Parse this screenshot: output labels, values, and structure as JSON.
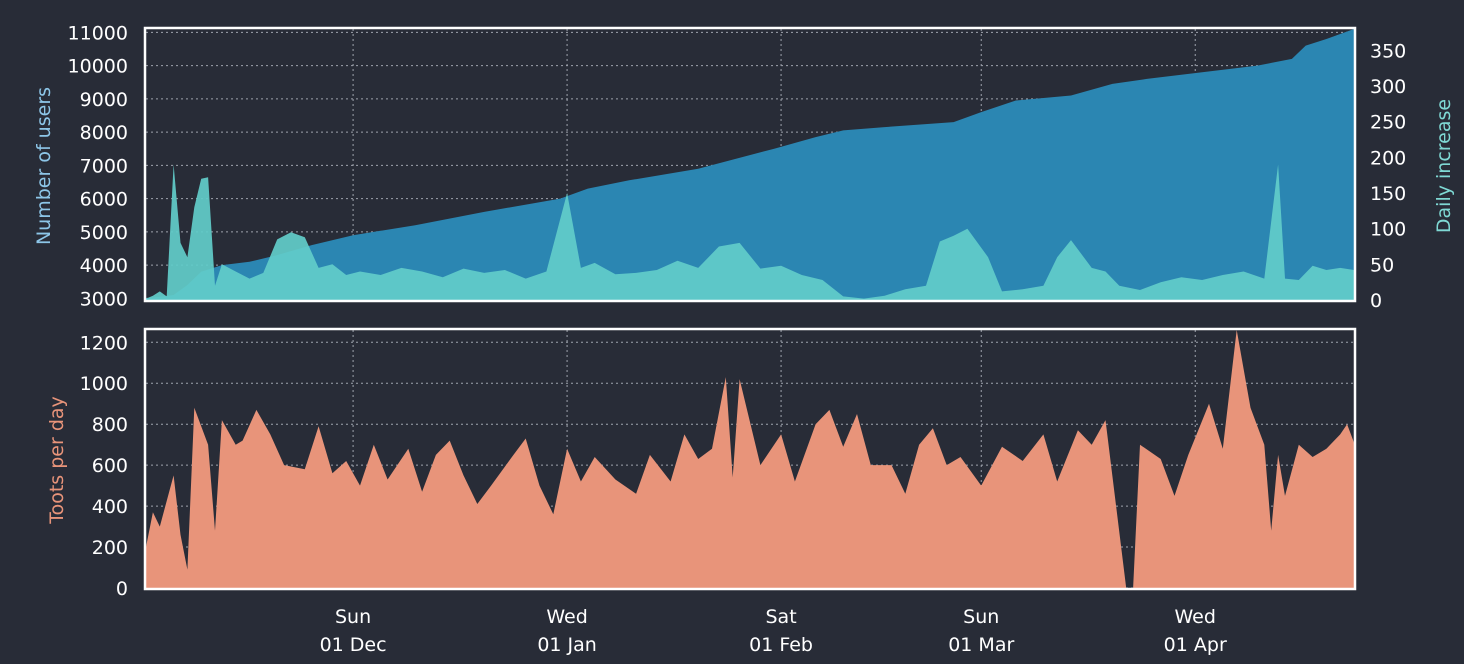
{
  "colors": {
    "background": "#282c37",
    "frame": "#ffffff",
    "grid": "#9ea3ad",
    "users_fill": "#2b86b2",
    "users_label": "#8dc6e8",
    "increase_fill": "#62cdca",
    "increase_label": "#7fd9d4",
    "toots_fill": "#e8947a",
    "toots_label": "#e8947a",
    "tick_text": "#ffffff"
  },
  "chart_data": [
    {
      "type": "area",
      "ylabel": "Number of users",
      "y2label": "Daily increase",
      "ylim": [
        2950,
        11100
      ],
      "y2lim": [
        0,
        380
      ],
      "yticks": [
        "3000",
        "4000",
        "5000",
        "6000",
        "7000",
        "8000",
        "9000",
        "10000",
        "11000"
      ],
      "y2ticks": [
        "0",
        "50",
        "100",
        "150",
        "200",
        "250",
        "300",
        "350"
      ],
      "x_start": "2019-11-01",
      "x_end": "2020-04-24",
      "grid": true,
      "series": [
        {
          "name": "Number of users",
          "axis": "left",
          "points": [
            [
              "2019-11-01",
              3000
            ],
            [
              "2019-11-03",
              3050
            ],
            [
              "2019-11-05",
              3100
            ],
            [
              "2019-11-07",
              3400
            ],
            [
              "2019-11-09",
              3800
            ],
            [
              "2019-11-12",
              4000
            ],
            [
              "2019-11-16",
              4100
            ],
            [
              "2019-11-20",
              4300
            ],
            [
              "2019-11-25",
              4600
            ],
            [
              "2019-12-01",
              4900
            ],
            [
              "2019-12-10",
              5200
            ],
            [
              "2019-12-20",
              5600
            ],
            [
              "2019-12-31",
              6000
            ],
            [
              "2020-01-04",
              6300
            ],
            [
              "2020-01-10",
              6550
            ],
            [
              "2020-01-20",
              6900
            ],
            [
              "2020-01-31",
              7500
            ],
            [
              "2020-02-06",
              7850
            ],
            [
              "2020-02-10",
              8050
            ],
            [
              "2020-02-16",
              8150
            ],
            [
              "2020-02-26",
              8300
            ],
            [
              "2020-03-01",
              8600
            ],
            [
              "2020-03-06",
              8950
            ],
            [
              "2020-03-14",
              9100
            ],
            [
              "2020-03-20",
              9450
            ],
            [
              "2020-03-25",
              9600
            ],
            [
              "2020-04-02",
              9800
            ],
            [
              "2020-04-10",
              10000
            ],
            [
              "2020-04-15",
              10200
            ],
            [
              "2020-04-17",
              10600
            ],
            [
              "2020-04-20",
              10800
            ],
            [
              "2020-04-24",
              11100
            ]
          ]
        },
        {
          "name": "Daily increase",
          "axis": "right",
          "points": [
            [
              "2019-11-01",
              2
            ],
            [
              "2019-11-02",
              6
            ],
            [
              "2019-11-03",
              12
            ],
            [
              "2019-11-04",
              5
            ],
            [
              "2019-11-05",
              190
            ],
            [
              "2019-11-06",
              80
            ],
            [
              "2019-11-07",
              60
            ],
            [
              "2019-11-08",
              130
            ],
            [
              "2019-11-09",
              170
            ],
            [
              "2019-11-10",
              172
            ],
            [
              "2019-11-11",
              20
            ],
            [
              "2019-11-12",
              50
            ],
            [
              "2019-11-14",
              40
            ],
            [
              "2019-11-16",
              30
            ],
            [
              "2019-11-18",
              38
            ],
            [
              "2019-11-20",
              85
            ],
            [
              "2019-11-22",
              95
            ],
            [
              "2019-11-24",
              88
            ],
            [
              "2019-11-26",
              45
            ],
            [
              "2019-11-28",
              50
            ],
            [
              "2019-11-30",
              35
            ],
            [
              "2019-12-02",
              40
            ],
            [
              "2019-12-05",
              35
            ],
            [
              "2019-12-08",
              45
            ],
            [
              "2019-12-11",
              40
            ],
            [
              "2019-12-14",
              32
            ],
            [
              "2019-12-17",
              44
            ],
            [
              "2019-12-20",
              38
            ],
            [
              "2019-12-23",
              42
            ],
            [
              "2019-12-26",
              30
            ],
            [
              "2019-12-29",
              40
            ],
            [
              "2020-01-01",
              150
            ],
            [
              "2020-01-03",
              45
            ],
            [
              "2020-01-05",
              52
            ],
            [
              "2020-01-08",
              36
            ],
            [
              "2020-01-11",
              38
            ],
            [
              "2020-01-14",
              42
            ],
            [
              "2020-01-17",
              55
            ],
            [
              "2020-01-20",
              45
            ],
            [
              "2020-01-23",
              75
            ],
            [
              "2020-01-26",
              80
            ],
            [
              "2020-01-29",
              44
            ],
            [
              "2020-02-01",
              48
            ],
            [
              "2020-02-04",
              35
            ],
            [
              "2020-02-07",
              28
            ],
            [
              "2020-02-10",
              5
            ],
            [
              "2020-02-13",
              2
            ],
            [
              "2020-02-16",
              6
            ],
            [
              "2020-02-19",
              15
            ],
            [
              "2020-02-22",
              20
            ],
            [
              "2020-02-24",
              82
            ],
            [
              "2020-02-26",
              90
            ],
            [
              "2020-02-28",
              100
            ],
            [
              "2020-03-02",
              60
            ],
            [
              "2020-03-04",
              12
            ],
            [
              "2020-03-07",
              15
            ],
            [
              "2020-03-10",
              20
            ],
            [
              "2020-03-12",
              60
            ],
            [
              "2020-03-14",
              84
            ],
            [
              "2020-03-17",
              45
            ],
            [
              "2020-03-19",
              40
            ],
            [
              "2020-03-21",
              20
            ],
            [
              "2020-03-24",
              14
            ],
            [
              "2020-03-27",
              25
            ],
            [
              "2020-03-30",
              32
            ],
            [
              "2020-04-02",
              28
            ],
            [
              "2020-04-05",
              35
            ],
            [
              "2020-04-08",
              40
            ],
            [
              "2020-04-11",
              30
            ],
            [
              "2020-04-13",
              190
            ],
            [
              "2020-04-14",
              30
            ],
            [
              "2020-04-16",
              28
            ],
            [
              "2020-04-18",
              48
            ],
            [
              "2020-04-20",
              42
            ],
            [
              "2020-04-22",
              45
            ],
            [
              "2020-04-24",
              42
            ]
          ]
        }
      ]
    },
    {
      "type": "area",
      "ylabel": "Toots per day",
      "ylim": [
        0,
        1260
      ],
      "yticks": [
        "0",
        "200",
        "400",
        "600",
        "800",
        "1000",
        "1200"
      ],
      "x_start": "2019-11-01",
      "x_end": "2020-04-24",
      "grid": true,
      "xticks": [
        {
          "date": "2019-12-01",
          "day": "Sun",
          "label": "01 Dec"
        },
        {
          "date": "2020-01-01",
          "day": "Wed",
          "label": "01 Jan"
        },
        {
          "date": "2020-02-01",
          "day": "Sat",
          "label": "01 Feb"
        },
        {
          "date": "2020-03-01",
          "day": "Sun",
          "label": "01 Mar"
        },
        {
          "date": "2020-04-01",
          "day": "Wed",
          "label": "01 Apr"
        }
      ],
      "series": [
        {
          "name": "Toots per day",
          "points": [
            [
              "2019-11-01",
              200
            ],
            [
              "2019-11-02",
              370
            ],
            [
              "2019-11-03",
              300
            ],
            [
              "2019-11-05",
              550
            ],
            [
              "2019-11-06",
              260
            ],
            [
              "2019-11-07",
              90
            ],
            [
              "2019-11-08",
              880
            ],
            [
              "2019-11-10",
              700
            ],
            [
              "2019-11-11",
              280
            ],
            [
              "2019-11-12",
              820
            ],
            [
              "2019-11-14",
              700
            ],
            [
              "2019-11-15",
              720
            ],
            [
              "2019-11-17",
              870
            ],
            [
              "2019-11-19",
              750
            ],
            [
              "2019-11-21",
              600
            ],
            [
              "2019-11-24",
              580
            ],
            [
              "2019-11-26",
              790
            ],
            [
              "2019-11-28",
              560
            ],
            [
              "2019-11-30",
              620
            ],
            [
              "2019-12-02",
              500
            ],
            [
              "2019-12-04",
              700
            ],
            [
              "2019-12-06",
              530
            ],
            [
              "2019-12-09",
              680
            ],
            [
              "2019-12-11",
              470
            ],
            [
              "2019-12-13",
              650
            ],
            [
              "2019-12-15",
              720
            ],
            [
              "2019-12-17",
              550
            ],
            [
              "2019-12-19",
              410
            ],
            [
              "2019-12-21",
              500
            ],
            [
              "2019-12-24",
              640
            ],
            [
              "2019-12-26",
              730
            ],
            [
              "2019-12-28",
              500
            ],
            [
              "2019-12-30",
              360
            ],
            [
              "2020-01-01",
              680
            ],
            [
              "2020-01-03",
              520
            ],
            [
              "2020-01-05",
              640
            ],
            [
              "2020-01-08",
              530
            ],
            [
              "2020-01-11",
              460
            ],
            [
              "2020-01-13",
              650
            ],
            [
              "2020-01-16",
              520
            ],
            [
              "2020-01-18",
              750
            ],
            [
              "2020-01-20",
              630
            ],
            [
              "2020-01-22",
              680
            ],
            [
              "2020-01-24",
              1030
            ],
            [
              "2020-01-25",
              540
            ],
            [
              "2020-01-26",
              1020
            ],
            [
              "2020-01-29",
              600
            ],
            [
              "2020-02-01",
              750
            ],
            [
              "2020-02-03",
              520
            ],
            [
              "2020-02-06",
              800
            ],
            [
              "2020-02-08",
              870
            ],
            [
              "2020-02-10",
              690
            ],
            [
              "2020-02-12",
              850
            ],
            [
              "2020-02-14",
              600
            ],
            [
              "2020-02-17",
              600
            ],
            [
              "2020-02-19",
              460
            ],
            [
              "2020-02-21",
              700
            ],
            [
              "2020-02-23",
              780
            ],
            [
              "2020-02-25",
              600
            ],
            [
              "2020-02-27",
              640
            ],
            [
              "2020-03-01",
              500
            ],
            [
              "2020-03-04",
              690
            ],
            [
              "2020-03-07",
              620
            ],
            [
              "2020-03-10",
              750
            ],
            [
              "2020-03-12",
              520
            ],
            [
              "2020-03-15",
              770
            ],
            [
              "2020-03-17",
              700
            ],
            [
              "2020-03-19",
              820
            ],
            [
              "2020-03-22",
              0
            ],
            [
              "2020-03-23",
              0
            ],
            [
              "2020-03-24",
              700
            ],
            [
              "2020-03-27",
              630
            ],
            [
              "2020-03-29",
              450
            ],
            [
              "2020-03-31",
              650
            ],
            [
              "2020-04-03",
              900
            ],
            [
              "2020-04-05",
              680
            ],
            [
              "2020-04-07",
              1260
            ],
            [
              "2020-04-09",
              880
            ],
            [
              "2020-04-11",
              700
            ],
            [
              "2020-04-12",
              280
            ],
            [
              "2020-04-13",
              650
            ],
            [
              "2020-04-14",
              450
            ],
            [
              "2020-04-16",
              700
            ],
            [
              "2020-04-18",
              640
            ],
            [
              "2020-04-20",
              680
            ],
            [
              "2020-04-22",
              750
            ],
            [
              "2020-04-23",
              800
            ],
            [
              "2020-04-24",
              710
            ]
          ]
        }
      ]
    }
  ]
}
